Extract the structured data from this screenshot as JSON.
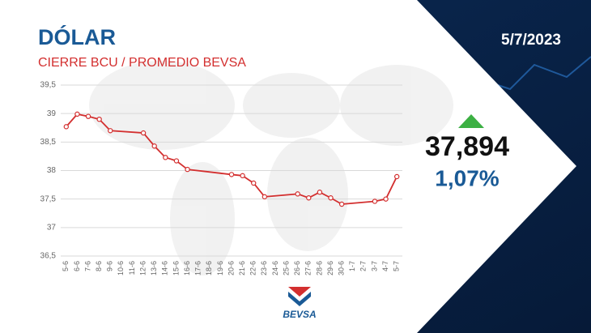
{
  "chart_data": {
    "type": "line",
    "title": "DÓLAR",
    "subtitle": "CIERRE BCU / PROMEDIO BEVSA",
    "date": "5/7/2023",
    "headline_value": "37,894",
    "headline_change": "1,07%",
    "brand": "BEVSA",
    "categories": [
      "5-6",
      "6-6",
      "7-6",
      "8-6",
      "9-6",
      "10-6",
      "11-6",
      "12-6",
      "13-6",
      "14-6",
      "15-6",
      "16-6",
      "17-6",
      "18-6",
      "19-6",
      "20-6",
      "21-6",
      "22-6",
      "23-6",
      "24-6",
      "25-6",
      "26-6",
      "27-6",
      "28-6",
      "29-6",
      "30-6",
      "1-7",
      "2-7",
      "3-7",
      "4-7",
      "5-7"
    ],
    "series": [
      {
        "name": "Dólar",
        "color": "#d32f2f",
        "values": [
          38.77,
          38.99,
          38.95,
          38.9,
          38.7,
          null,
          null,
          38.66,
          38.43,
          38.23,
          38.17,
          38.02,
          null,
          null,
          null,
          37.93,
          37.91,
          37.78,
          37.54,
          null,
          null,
          37.59,
          37.52,
          37.62,
          37.52,
          37.41,
          null,
          null,
          37.46,
          37.5,
          37.894
        ]
      }
    ],
    "ylim": [
      36.5,
      39.5
    ],
    "yticks": [
      {
        "value": 36.5,
        "label": "36,5"
      },
      37,
      {
        "value": 37.5,
        "label": "37,5"
      },
      38,
      {
        "value": 38.5,
        "label": "38,5"
      },
      39,
      {
        "value": 39.5,
        "label": "39,5"
      }
    ],
    "grid": true
  }
}
